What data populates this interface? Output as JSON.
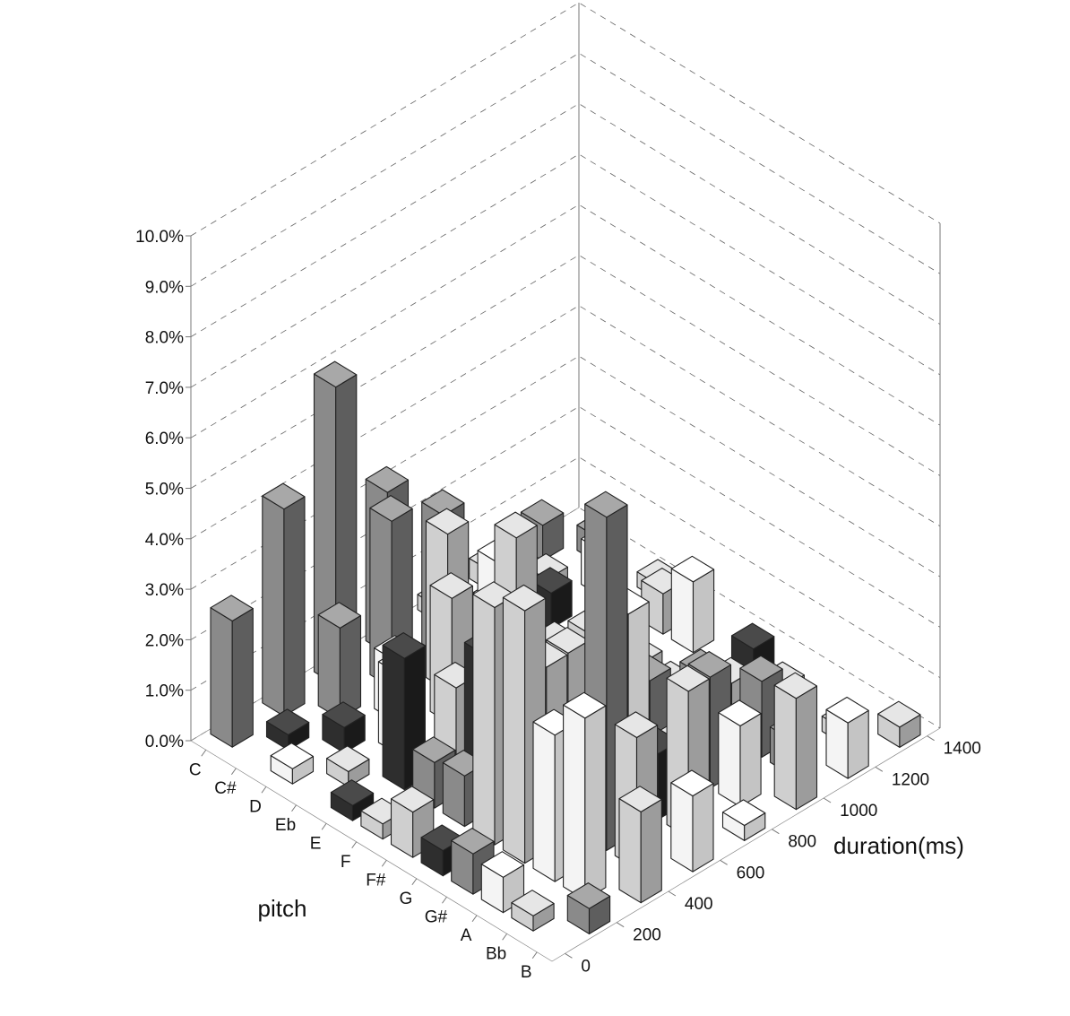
{
  "chart_data": {
    "type": "bar",
    "subtype": "3d-bar",
    "xlabel": "duration(ms)",
    "ylabel": "pitch",
    "zlabel": "",
    "x_ticks": [
      "0",
      "200",
      "400",
      "600",
      "800",
      "1000",
      "1200",
      "1400"
    ],
    "x_range": [
      0,
      1500
    ],
    "y_categories": [
      "C",
      "C#",
      "D",
      "Eb",
      "E",
      "F",
      "F#",
      "G",
      "G#",
      "A",
      "Bb",
      "B"
    ],
    "z_ticks": [
      "0.0%",
      "1.0%",
      "2.0%",
      "3.0%",
      "4.0%",
      "5.0%",
      "6.0%",
      "7.0%",
      "8.0%",
      "9.0%",
      "10.0%"
    ],
    "z_range": [
      0,
      10
    ],
    "grid": true,
    "legend": "none",
    "colors": {
      "light": "#d8d8d8",
      "white": "#f4f4f4",
      "mid": "#8a8a8a",
      "dark": "#2e2e2e"
    },
    "bars": [
      {
        "pitch": "C",
        "duration": 100,
        "value": 2.5,
        "shade": "mid"
      },
      {
        "pitch": "C",
        "duration": 300,
        "value": 4.1,
        "shade": "mid"
      },
      {
        "pitch": "C",
        "duration": 500,
        "value": 5.9,
        "shade": "mid"
      },
      {
        "pitch": "C",
        "duration": 700,
        "value": 3.2,
        "shade": "mid"
      },
      {
        "pitch": "C",
        "duration": 900,
        "value": 0.3,
        "shade": "light"
      },
      {
        "pitch": "C",
        "duration": 1100,
        "value": 0.4,
        "shade": "light"
      },
      {
        "pitch": "C",
        "duration": 1300,
        "value": 0.7,
        "shade": "mid"
      },
      {
        "pitch": "C#",
        "duration": 200,
        "value": 0.3,
        "shade": "dark"
      },
      {
        "pitch": "C#",
        "duration": 400,
        "value": 1.8,
        "shade": "mid"
      },
      {
        "pitch": "C#",
        "duration": 600,
        "value": 3.3,
        "shade": "mid"
      },
      {
        "pitch": "C#",
        "duration": 800,
        "value": 2.8,
        "shade": "mid"
      },
      {
        "pitch": "C#",
        "duration": 1000,
        "value": 0.4,
        "shade": "light"
      },
      {
        "pitch": "C#",
        "duration": 1200,
        "value": 0.3,
        "shade": "light"
      },
      {
        "pitch": "C#",
        "duration": 1400,
        "value": 0.5,
        "shade": "mid"
      },
      {
        "pitch": "D",
        "duration": 100,
        "value": 0.3,
        "shade": "white"
      },
      {
        "pitch": "D",
        "duration": 300,
        "value": 0.5,
        "shade": "dark"
      },
      {
        "pitch": "D",
        "duration": 500,
        "value": 1.2,
        "shade": "white"
      },
      {
        "pitch": "D",
        "duration": 700,
        "value": 3.1,
        "shade": "light"
      },
      {
        "pitch": "D",
        "duration": 900,
        "value": 1.9,
        "shade": "white"
      },
      {
        "pitch": "D",
        "duration": 1100,
        "value": 0.7,
        "shade": "dark"
      },
      {
        "pitch": "D",
        "duration": 1300,
        "value": 0.9,
        "shade": "white"
      },
      {
        "pitch": "Eb",
        "duration": 200,
        "value": 0.3,
        "shade": "light"
      },
      {
        "pitch": "Eb",
        "duration": 400,
        "value": 1.6,
        "shade": "white"
      },
      {
        "pitch": "Eb",
        "duration": 600,
        "value": 2.5,
        "shade": "light"
      },
      {
        "pitch": "Eb",
        "duration": 800,
        "value": 1.5,
        "shade": "mid"
      },
      {
        "pitch": "Eb",
        "duration": 1000,
        "value": 0.3,
        "shade": "light"
      },
      {
        "pitch": "Eb",
        "duration": 1400,
        "value": 0.3,
        "shade": "light"
      },
      {
        "pitch": "E",
        "duration": 100,
        "value": 0.3,
        "shade": "dark"
      },
      {
        "pitch": "E",
        "duration": 300,
        "value": 2.6,
        "shade": "dark"
      },
      {
        "pitch": "E",
        "duration": 500,
        "value": 1.4,
        "shade": "light"
      },
      {
        "pitch": "E",
        "duration": 700,
        "value": 2.3,
        "shade": "white"
      },
      {
        "pitch": "E",
        "duration": 900,
        "value": 0.7,
        "shade": "mid"
      },
      {
        "pitch": "E",
        "duration": 1100,
        "value": 0.4,
        "shade": "white"
      },
      {
        "pitch": "E",
        "duration": 1300,
        "value": 0.8,
        "shade": "light"
      },
      {
        "pitch": "F",
        "duration": 100,
        "value": 0.3,
        "shade": "light"
      },
      {
        "pitch": "F",
        "duration": 300,
        "value": 0.9,
        "shade": "mid"
      },
      {
        "pitch": "F",
        "duration": 500,
        "value": 2.4,
        "shade": "dark"
      },
      {
        "pitch": "F",
        "duration": 700,
        "value": 0.5,
        "shade": "dark"
      },
      {
        "pitch": "F",
        "duration": 900,
        "value": 1.6,
        "shade": "light"
      },
      {
        "pitch": "F",
        "duration": 1100,
        "value": 0.4,
        "shade": "light"
      },
      {
        "pitch": "F",
        "duration": 1300,
        "value": 1.4,
        "shade": "white"
      },
      {
        "pitch": "F#",
        "duration": 100,
        "value": 0.9,
        "shade": "light"
      },
      {
        "pitch": "F#",
        "duration": 300,
        "value": 1.0,
        "shade": "mid"
      },
      {
        "pitch": "F#",
        "duration": 500,
        "value": 5.1,
        "shade": "light"
      },
      {
        "pitch": "F#",
        "duration": 700,
        "value": 2.2,
        "shade": "light"
      },
      {
        "pitch": "F#",
        "duration": 900,
        "value": 0.4,
        "shade": "mid"
      },
      {
        "pitch": "F#",
        "duration": 1100,
        "value": 0.3,
        "shade": "light"
      },
      {
        "pitch": "G",
        "duration": 100,
        "value": 0.5,
        "shade": "dark"
      },
      {
        "pitch": "G",
        "duration": 300,
        "value": 4.7,
        "shade": "light"
      },
      {
        "pitch": "G",
        "duration": 500,
        "value": 2.9,
        "shade": "light"
      },
      {
        "pitch": "G",
        "duration": 700,
        "value": 0.6,
        "shade": "dark"
      },
      {
        "pitch": "G",
        "duration": 900,
        "value": 1.4,
        "shade": "mid"
      },
      {
        "pitch": "G",
        "duration": 1100,
        "value": 0.9,
        "shade": "mid"
      },
      {
        "pitch": "G",
        "duration": 1300,
        "value": 0.8,
        "shade": "dark"
      },
      {
        "pitch": "G#",
        "duration": 100,
        "value": 0.8,
        "shade": "mid"
      },
      {
        "pitch": "G#",
        "duration": 300,
        "value": 5.0,
        "shade": "light"
      },
      {
        "pitch": "G#",
        "duration": 500,
        "value": 1.1,
        "shade": "dark"
      },
      {
        "pitch": "G#",
        "duration": 700,
        "value": 3.7,
        "shade": "white"
      },
      {
        "pitch": "G#",
        "duration": 900,
        "value": 0.5,
        "shade": "light"
      },
      {
        "pitch": "G#",
        "duration": 1100,
        "value": 1.1,
        "shade": "light"
      },
      {
        "pitch": "G#",
        "duration": 1300,
        "value": 0.4,
        "shade": "light"
      },
      {
        "pitch": "A",
        "duration": 100,
        "value": 0.7,
        "shade": "white"
      },
      {
        "pitch": "A",
        "duration": 300,
        "value": 2.9,
        "shade": "white"
      },
      {
        "pitch": "A",
        "duration": 500,
        "value": 6.6,
        "shade": "mid"
      },
      {
        "pitch": "A",
        "duration": 700,
        "value": 1.3,
        "shade": "dark"
      },
      {
        "pitch": "A",
        "duration": 900,
        "value": 2.2,
        "shade": "mid"
      },
      {
        "pitch": "A",
        "duration": 1100,
        "value": 1.5,
        "shade": "mid"
      },
      {
        "pitch": "Bb",
        "duration": 100,
        "value": 0.3,
        "shade": "light"
      },
      {
        "pitch": "Bb",
        "duration": 300,
        "value": 3.6,
        "shade": "white"
      },
      {
        "pitch": "Bb",
        "duration": 500,
        "value": 2.6,
        "shade": "light"
      },
      {
        "pitch": "Bb",
        "duration": 700,
        "value": 2.9,
        "shade": "light"
      },
      {
        "pitch": "Bb",
        "duration": 900,
        "value": 1.6,
        "shade": "white"
      },
      {
        "pitch": "Bb",
        "duration": 1100,
        "value": 0.7,
        "shade": "mid"
      },
      {
        "pitch": "Bb",
        "duration": 1300,
        "value": 0.3,
        "shade": "light"
      },
      {
        "pitch": "B",
        "duration": 200,
        "value": 0.5,
        "shade": "mid"
      },
      {
        "pitch": "B",
        "duration": 400,
        "value": 1.8,
        "shade": "light"
      },
      {
        "pitch": "B",
        "duration": 600,
        "value": 1.5,
        "shade": "white"
      },
      {
        "pitch": "B",
        "duration": 800,
        "value": 0.3,
        "shade": "white"
      },
      {
        "pitch": "B",
        "duration": 1000,
        "value": 2.2,
        "shade": "light"
      },
      {
        "pitch": "B",
        "duration": 1200,
        "value": 1.1,
        "shade": "white"
      },
      {
        "pitch": "B",
        "duration": 1400,
        "value": 0.4,
        "shade": "light"
      }
    ]
  }
}
